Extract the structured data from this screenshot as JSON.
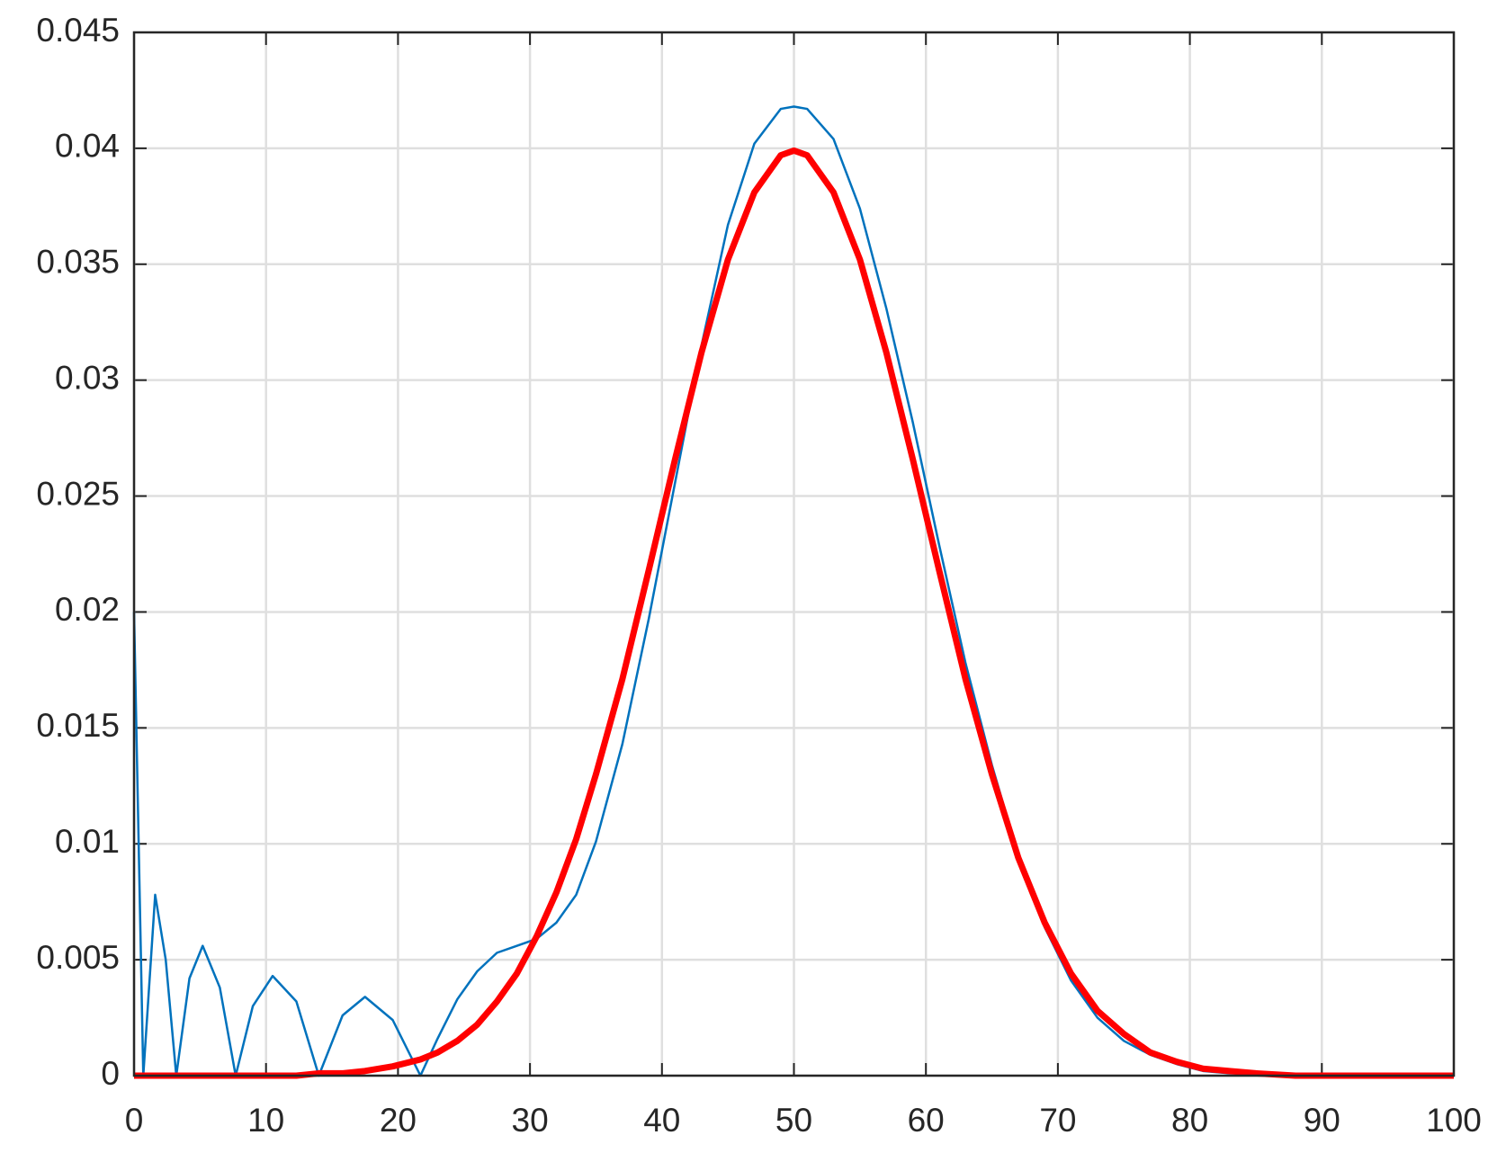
{
  "chart_data": {
    "type": "line",
    "x": [
      0,
      0.7,
      1.6,
      2.4,
      3.2,
      4.2,
      5.2,
      6.5,
      7.7,
      9,
      10.5,
      12.3,
      14,
      15.8,
      17.5,
      19.6,
      21.7,
      23,
      24.5,
      26,
      27.5,
      29,
      30.5,
      32,
      33.5,
      35,
      37,
      39,
      41,
      43,
      45,
      47,
      49,
      50,
      51,
      53,
      55,
      57,
      59,
      61,
      63,
      65,
      67,
      69,
      71,
      73,
      75,
      77,
      79,
      81,
      83,
      85,
      88,
      91,
      94,
      97,
      100
    ],
    "series": [
      {
        "color": "#0072bd",
        "width": 2.5,
        "values": [
          0.02,
          0,
          0.0078,
          0.005,
          0,
          0.0042,
          0.0056,
          0.0038,
          0,
          0.003,
          0.0043,
          0.0032,
          0,
          0.0026,
          0.0034,
          0.0024,
          0,
          0.0016,
          0.0033,
          0.0045,
          0.0053,
          0.0056,
          0.0059,
          0.0066,
          0.0078,
          0.0101,
          0.0143,
          0.0197,
          0.0256,
          0.0315,
          0.0367,
          0.0402,
          0.0417,
          0.0418,
          0.0417,
          0.0404,
          0.0374,
          0.0331,
          0.0282,
          0.0229,
          0.0178,
          0.0134,
          0.0095,
          0.0064,
          0.0041,
          0.0025,
          0.0015,
          0.0009,
          0.0005,
          0.0002,
          0.0001,
          0.0001,
          0,
          0,
          0,
          0,
          0
        ]
      },
      {
        "color": "#ff0000",
        "width": 7,
        "values": [
          0,
          0,
          0,
          0,
          0,
          0,
          0,
          0,
          0,
          0,
          0,
          0,
          0.0001,
          0.0001,
          0.0002,
          0.0004,
          0.0007,
          0.001,
          0.0015,
          0.0022,
          0.0032,
          0.0044,
          0.006,
          0.0079,
          0.0102,
          0.013,
          0.0171,
          0.0218,
          0.0266,
          0.0312,
          0.0352,
          0.0381,
          0.0397,
          0.0399,
          0.0397,
          0.0381,
          0.0352,
          0.0312,
          0.0266,
          0.0218,
          0.0171,
          0.013,
          0.0094,
          0.0066,
          0.0044,
          0.0028,
          0.0018,
          0.001,
          0.0006,
          0.0003,
          0.0002,
          0.0001,
          0,
          0,
          0,
          0,
          0
        ]
      }
    ],
    "xlim": [
      0,
      100
    ],
    "xticks": [
      0,
      10,
      20,
      30,
      40,
      50,
      60,
      70,
      80,
      90,
      100
    ],
    "ylim": [
      0,
      0.045
    ],
    "yticks": [
      0,
      0.005,
      0.01,
      0.015,
      0.02,
      0.025,
      0.03,
      0.035,
      0.04,
      0.045
    ],
    "grid": true
  }
}
